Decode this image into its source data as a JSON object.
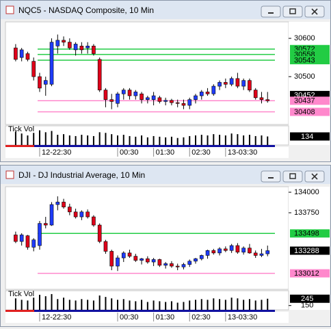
{
  "chart_data": [
    {
      "type": "candlestick",
      "title": "NQC5 - NASDAQ Composite, 10 Min",
      "volume_title": "Tick Vol",
      "up_color": "#1f3cff",
      "down_color": "#e0001a",
      "ylim": [
        30375,
        30643
      ],
      "yticks": [
        30600,
        30500
      ],
      "vollim": [
        0,
        300
      ],
      "volticks": [],
      "categories": [
        null,
        null,
        null,
        null,
        "12-22:30",
        null,
        null,
        null,
        null,
        null,
        null,
        null,
        null,
        null,
        null,
        null,
        null,
        "00:30",
        null,
        null,
        null,
        null,
        null,
        "01:30",
        null,
        null,
        null,
        null,
        null,
        "02:30",
        null,
        null,
        null,
        null,
        null,
        "13-03:30",
        null,
        null,
        null,
        null,
        null,
        null,
        null
      ],
      "levels": [
        {
          "value": 30572,
          "color": "#22cc44"
        },
        {
          "value": 30558,
          "color": "#22cc44"
        },
        {
          "value": 30543,
          "color": "#22cc44"
        },
        {
          "value": 30452,
          "color": "#000000"
        },
        {
          "value": 30437,
          "color": "#ff88cc"
        },
        {
          "value": 30408,
          "color": "#ff88cc"
        }
      ],
      "ohlc": [
        [
          30575,
          30585,
          30540,
          30545
        ],
        [
          30550,
          30575,
          30540,
          30570
        ],
        [
          30560,
          30565,
          30540,
          30545
        ],
        [
          30540,
          30550,
          30490,
          30500
        ],
        [
          30500,
          30510,
          30460,
          30470
        ],
        [
          30480,
          30500,
          30450,
          30490
        ],
        [
          30480,
          30600,
          30475,
          30590
        ],
        [
          30580,
          30610,
          30560,
          30595
        ],
        [
          30595,
          30605,
          30580,
          30590
        ],
        [
          30590,
          30600,
          30570,
          30575
        ],
        [
          30570,
          30590,
          30555,
          30585
        ],
        [
          30580,
          30590,
          30560,
          30570
        ],
        [
          30575,
          30590,
          30560,
          30580
        ],
        [
          30580,
          30585,
          30555,
          30560
        ],
        [
          30545,
          30550,
          30460,
          30465
        ],
        [
          30465,
          30470,
          30420,
          30440
        ],
        [
          30440,
          30455,
          30415,
          30435
        ],
        [
          30430,
          30460,
          30420,
          30455
        ],
        [
          30455,
          30470,
          30440,
          30465
        ],
        [
          30465,
          30470,
          30440,
          30450
        ],
        [
          30450,
          30465,
          30440,
          30460
        ],
        [
          30455,
          30460,
          30430,
          30440
        ],
        [
          30440,
          30450,
          30430,
          30445
        ],
        [
          30440,
          30460,
          30425,
          30450
        ],
        [
          30445,
          30450,
          30430,
          30435
        ],
        [
          30435,
          30445,
          30425,
          30438
        ],
        [
          30438,
          30442,
          30425,
          30432
        ],
        [
          30432,
          30440,
          30420,
          30430
        ],
        [
          30430,
          30440,
          30415,
          30425
        ],
        [
          30425,
          30445,
          30415,
          30440
        ],
        [
          30440,
          30455,
          30430,
          30450
        ],
        [
          30450,
          30465,
          30440,
          30460
        ],
        [
          30460,
          30470,
          30450,
          30455
        ],
        [
          30455,
          30480,
          30450,
          30475
        ],
        [
          30475,
          30490,
          30465,
          30485
        ],
        [
          30485,
          30495,
          30470,
          30480
        ],
        [
          30480,
          30500,
          30475,
          30495
        ],
        [
          30495,
          30510,
          30470,
          30475
        ],
        [
          30475,
          30495,
          30465,
          30490
        ],
        [
          30490,
          30495,
          30460,
          30465
        ],
        [
          30465,
          30470,
          30440,
          30445
        ],
        [
          30445,
          30460,
          30430,
          30440
        ],
        [
          30440,
          30460,
          30432,
          30437
        ]
      ],
      "volumes": [
        210,
        180,
        150,
        190,
        230,
        200,
        220,
        160,
        170,
        150,
        140,
        160,
        150,
        140,
        200,
        190,
        170,
        150,
        160,
        140,
        130,
        150,
        120,
        140,
        130,
        120,
        130,
        110,
        120,
        140,
        150,
        160,
        150,
        170,
        160,
        150,
        180,
        170,
        150,
        160,
        140,
        150,
        134
      ]
    },
    {
      "type": "candlestick",
      "title": "DJI - DJ Industrial Average, 10 Min",
      "volume_title": "Tick Vol",
      "up_color": "#1f3cff",
      "down_color": "#e0001a",
      "ylim": [
        132817,
        134067
      ],
      "yticks": [
        134000,
        133750
      ],
      "vollim": [
        90,
        357
      ],
      "volticks": [
        150
      ],
      "categories": [
        null,
        null,
        null,
        null,
        "12-22:30",
        null,
        null,
        null,
        null,
        null,
        null,
        null,
        null,
        null,
        null,
        null,
        null,
        "00:30",
        null,
        null,
        null,
        null,
        null,
        "01:30",
        null,
        null,
        null,
        null,
        null,
        "02:30",
        null,
        null,
        null,
        null,
        null,
        "13-03:30",
        null,
        null,
        null,
        null,
        null,
        null,
        null
      ],
      "levels": [
        {
          "value": 133498,
          "color": "#22cc44"
        },
        {
          "value": 133288,
          "color": "#000000"
        },
        {
          "value": 133012,
          "color": "#ff88cc"
        }
      ],
      "ohlc": [
        [
          133480,
          133520,
          133380,
          133400
        ],
        [
          133400,
          133500,
          133350,
          133480
        ],
        [
          133470,
          133480,
          133300,
          133330
        ],
        [
          133330,
          133440,
          133280,
          133420
        ],
        [
          133350,
          133650,
          133300,
          133620
        ],
        [
          133620,
          133700,
          133560,
          133600
        ],
        [
          133600,
          133880,
          133590,
          133850
        ],
        [
          133850,
          133950,
          133780,
          133880
        ],
        [
          133880,
          133920,
          133800,
          133820
        ],
        [
          133820,
          133860,
          133720,
          133760
        ],
        [
          133760,
          133800,
          133680,
          133700
        ],
        [
          133700,
          133780,
          133660,
          133760
        ],
        [
          133760,
          133790,
          133680,
          133700
        ],
        [
          133700,
          133720,
          133580,
          133600
        ],
        [
          133600,
          133620,
          133380,
          133400
        ],
        [
          133400,
          133420,
          133250,
          133280
        ],
        [
          133280,
          133300,
          133050,
          133100
        ],
        [
          133100,
          133230,
          133040,
          133200
        ],
        [
          133200,
          133280,
          133150,
          133260
        ],
        [
          133260,
          133300,
          133200,
          133220
        ],
        [
          133220,
          133250,
          133150,
          133170
        ],
        [
          133170,
          133200,
          133120,
          133190
        ],
        [
          133190,
          133220,
          133130,
          133150
        ],
        [
          133150,
          133200,
          133100,
          133180
        ],
        [
          133180,
          133190,
          133090,
          133110
        ],
        [
          133110,
          133150,
          133070,
          133130
        ],
        [
          133130,
          133160,
          133080,
          133100
        ],
        [
          133100,
          133130,
          133050,
          133090
        ],
        [
          133090,
          133140,
          133060,
          133120
        ],
        [
          133120,
          133180,
          133090,
          133160
        ],
        [
          133160,
          133200,
          133130,
          133190
        ],
        [
          133190,
          133240,
          133170,
          133230
        ],
        [
          133230,
          133300,
          133190,
          133290
        ],
        [
          133290,
          133310,
          133240,
          133260
        ],
        [
          133260,
          133330,
          133230,
          133310
        ],
        [
          133310,
          133340,
          133270,
          133290
        ],
        [
          133290,
          133370,
          133260,
          133350
        ],
        [
          133350,
          133380,
          133250,
          133270
        ],
        [
          133270,
          133340,
          133240,
          133320
        ],
        [
          133320,
          133370,
          133250,
          133260
        ],
        [
          133260,
          133290,
          133200,
          133230
        ],
        [
          133230,
          133310,
          133210,
          133250
        ],
        [
          133250,
          133350,
          133220,
          133288
        ]
      ],
      "volumes": [
        250,
        230,
        220,
        260,
        300,
        280,
        310,
        240,
        260,
        230,
        220,
        240,
        230,
        220,
        290,
        270,
        250,
        230,
        240,
        220,
        210,
        230,
        200,
        220,
        210,
        200,
        210,
        190,
        200,
        220,
        230,
        240,
        230,
        250,
        240,
        230,
        260,
        250,
        230,
        240,
        220,
        230,
        245
      ]
    }
  ]
}
